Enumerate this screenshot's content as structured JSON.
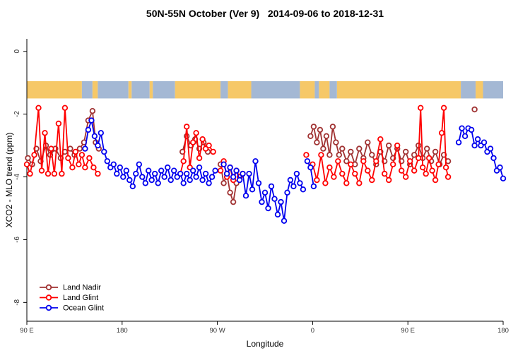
{
  "chart_data": {
    "type": "line",
    "title": "50N-55N October (Ver 9)   2014-09-06 to 2018-12-31",
    "xlabel": "Longitude",
    "ylabel": "XCO2 - MLO trend (ppm)",
    "xlim": [
      0,
      450
    ],
    "ylim": [
      -8.6,
      0.4
    ],
    "grid": false,
    "legend_position": "bottom-left",
    "x_ticks": [
      {
        "pos": 0,
        "label": "90 E"
      },
      {
        "pos": 90,
        "label": "180"
      },
      {
        "pos": 180,
        "label": "90 W"
      },
      {
        "pos": 270,
        "label": "0"
      },
      {
        "pos": 360,
        "label": "90 E"
      },
      {
        "pos": 450,
        "label": "180"
      }
    ],
    "y_ticks": [
      {
        "value": 0,
        "label": "0"
      },
      {
        "value": -2,
        "label": "-2"
      },
      {
        "value": -4,
        "label": "-4"
      },
      {
        "value": -6,
        "label": "-6"
      },
      {
        "value": -8,
        "label": "-8"
      }
    ],
    "map_strip": {
      "description": "land-ocean band along 50N-55N latitude",
      "y_top": -0.95,
      "y_bottom": -1.5,
      "land_color": "#F6C868",
      "ocean_color": "#A4B8D4",
      "segments": [
        [
          0,
          52,
          "land"
        ],
        [
          52,
          62,
          "ocean"
        ],
        [
          62,
          67,
          "land"
        ],
        [
          67,
          96,
          "ocean"
        ],
        [
          96,
          99,
          "land"
        ],
        [
          99,
          116,
          "ocean"
        ],
        [
          116,
          119,
          "land"
        ],
        [
          119,
          140,
          "ocean"
        ],
        [
          140,
          183,
          "land"
        ],
        [
          183,
          190,
          "ocean"
        ],
        [
          190,
          212,
          "land"
        ],
        [
          212,
          258,
          "ocean"
        ],
        [
          258,
          272,
          "land"
        ],
        [
          272,
          276,
          "ocean"
        ],
        [
          276,
          286,
          "land"
        ],
        [
          286,
          293,
          "ocean"
        ],
        [
          293,
          410,
          "land"
        ],
        [
          410,
          424,
          "ocean"
        ],
        [
          424,
          431,
          "land"
        ],
        [
          431,
          450,
          "ocean"
        ]
      ]
    },
    "series": [
      {
        "name": "Land Nadir",
        "color": "#A03232",
        "segments": [
          [
            [
              1,
              -3.4
            ],
            [
              5,
              -3.6
            ],
            [
              9,
              -3.1
            ],
            [
              13,
              -3.5
            ],
            [
              18,
              -3.0
            ],
            [
              22,
              -3.3
            ],
            [
              27,
              -3.1
            ],
            [
              32,
              -3.4
            ],
            [
              36,
              -3.2
            ],
            [
              41,
              -3.1
            ],
            [
              45,
              -3.3
            ],
            [
              50,
              -3.1
            ],
            [
              54,
              -2.9
            ],
            [
              58,
              -2.2
            ],
            [
              62,
              -1.9
            ],
            [
              65,
              -2.9
            ],
            [
              68,
              -3.1
            ]
          ],
          [
            [
              147,
              -3.2
            ],
            [
              151,
              -2.7
            ],
            [
              155,
              -3.0
            ],
            [
              159,
              -2.8
            ],
            [
              163,
              -3.1
            ],
            [
              167,
              -2.9
            ],
            [
              171,
              -3.2
            ]
          ],
          [
            [
              183,
              -3.6
            ],
            [
              186,
              -4.2
            ],
            [
              189,
              -3.9
            ],
            [
              192,
              -4.5
            ],
            [
              195,
              -4.8
            ],
            [
              198,
              -4.2
            ]
          ],
          [
            [
              268,
              -2.7
            ],
            [
              271,
              -2.4
            ],
            [
              274,
              -2.9
            ],
            [
              277,
              -2.5
            ],
            [
              280,
              -3.1
            ],
            [
              283,
              -2.7
            ],
            [
              286,
              -3.3
            ],
            [
              289,
              -2.4
            ],
            [
              292,
              -2.9
            ],
            [
              295,
              -3.3
            ],
            [
              298,
              -3.1
            ],
            [
              302,
              -3.5
            ],
            [
              306,
              -3.2
            ],
            [
              310,
              -3.6
            ],
            [
              314,
              -3.1
            ],
            [
              318,
              -3.4
            ],
            [
              322,
              -2.9
            ],
            [
              326,
              -3.3
            ],
            [
              330,
              -3.6
            ],
            [
              334,
              -3.2
            ],
            [
              338,
              -3.5
            ],
            [
              342,
              -3.0
            ],
            [
              346,
              -3.4
            ],
            [
              350,
              -3.1
            ],
            [
              354,
              -3.5
            ],
            [
              358,
              -3.2
            ],
            [
              362,
              -3.6
            ],
            [
              366,
              -3.3
            ],
            [
              370,
              -3.0
            ],
            [
              374,
              -3.4
            ],
            [
              378,
              -3.1
            ],
            [
              382,
              -3.5
            ],
            [
              386,
              -3.2
            ],
            [
              390,
              -3.6
            ],
            [
              394,
              -3.3
            ],
            [
              398,
              -3.5
            ]
          ],
          [
            [
              423,
              -1.85
            ]
          ]
        ]
      },
      {
        "name": "Land Glint",
        "color": "#FF0000",
        "segments": [
          [
            [
              0,
              -3.6
            ],
            [
              3,
              -3.9
            ],
            [
              7,
              -3.3
            ],
            [
              11,
              -1.8
            ],
            [
              14,
              -3.8
            ],
            [
              17,
              -2.6
            ],
            [
              20,
              -3.9
            ],
            [
              23,
              -3.1
            ],
            [
              26,
              -3.9
            ],
            [
              30,
              -2.3
            ],
            [
              33,
              -3.9
            ],
            [
              36,
              -1.8
            ],
            [
              39,
              -3.4
            ],
            [
              43,
              -3.7
            ],
            [
              46,
              -3.2
            ],
            [
              49,
              -3.6
            ],
            [
              52,
              -3.3
            ],
            [
              55,
              -3.7
            ],
            [
              59,
              -3.4
            ],
            [
              63,
              -3.7
            ],
            [
              67,
              -3.9
            ]
          ],
          [
            [
              145,
              -3.9
            ],
            [
              148,
              -3.5
            ],
            [
              151,
              -2.4
            ],
            [
              154,
              -3.7
            ],
            [
              157,
              -2.9
            ],
            [
              160,
              -2.6
            ],
            [
              163,
              -3.4
            ],
            [
              166,
              -2.8
            ],
            [
              169,
              -3.1
            ],
            [
              172,
              -3.0
            ],
            [
              176,
              -3.2
            ]
          ],
          [
            [
              183,
              -3.8
            ],
            [
              186,
              -3.5
            ],
            [
              189,
              -4.0
            ],
            [
              192,
              -3.7
            ],
            [
              195,
              -4.1
            ],
            [
              198,
              -3.8
            ],
            [
              201,
              -4.0
            ],
            [
              204,
              -3.9
            ]
          ],
          [
            [
              264,
              -3.3
            ]
          ],
          [
            [
              270,
              -3.6
            ],
            [
              274,
              -4.1
            ],
            [
              278,
              -3.3
            ],
            [
              282,
              -4.2
            ],
            [
              286,
              -3.7
            ],
            [
              290,
              -4.0
            ],
            [
              294,
              -3.5
            ],
            [
              298,
              -3.9
            ],
            [
              302,
              -4.2
            ],
            [
              306,
              -3.6
            ],
            [
              310,
              -3.9
            ],
            [
              314,
              -4.2
            ],
            [
              318,
              -3.5
            ],
            [
              322,
              -3.8
            ],
            [
              326,
              -4.1
            ],
            [
              330,
              -3.5
            ],
            [
              334,
              -2.8
            ],
            [
              338,
              -3.9
            ],
            [
              342,
              -4.1
            ],
            [
              346,
              -3.6
            ],
            [
              350,
              -3.0
            ],
            [
              354,
              -3.8
            ],
            [
              358,
              -4.0
            ],
            [
              362,
              -3.5
            ],
            [
              366,
              -3.8
            ],
            [
              370,
              -3.4
            ],
            [
              372,
              -1.8
            ],
            [
              374,
              -3.7
            ],
            [
              377,
              -3.9
            ],
            [
              380,
              -3.4
            ],
            [
              383,
              -3.8
            ],
            [
              386,
              -4.1
            ],
            [
              389,
              -3.6
            ],
            [
              392,
              -2.6
            ],
            [
              394,
              -1.8
            ],
            [
              396,
              -3.7
            ],
            [
              398,
              -4.0
            ]
          ]
        ]
      },
      {
        "name": "Ocean Glint",
        "color": "#0000EE",
        "segments": [
          [
            [
              55,
              -3.1
            ],
            [
              58,
              -2.5
            ],
            [
              61,
              -2.2
            ],
            [
              64,
              -2.7
            ],
            [
              67,
              -3.0
            ],
            [
              70,
              -2.6
            ],
            [
              73,
              -3.2
            ],
            [
              76,
              -3.5
            ],
            [
              79,
              -3.7
            ],
            [
              82,
              -3.6
            ],
            [
              85,
              -3.9
            ],
            [
              88,
              -3.7
            ],
            [
              91,
              -4.0
            ],
            [
              94,
              -3.8
            ],
            [
              97,
              -4.1
            ],
            [
              100,
              -4.3
            ],
            [
              103,
              -3.9
            ],
            [
              106,
              -3.6
            ],
            [
              109,
              -4.0
            ],
            [
              112,
              -4.2
            ],
            [
              115,
              -3.8
            ],
            [
              118,
              -4.1
            ],
            [
              121,
              -3.9
            ],
            [
              124,
              -4.2
            ],
            [
              127,
              -3.8
            ],
            [
              130,
              -4.0
            ],
            [
              133,
              -3.7
            ],
            [
              136,
              -4.1
            ],
            [
              139,
              -3.8
            ],
            [
              142,
              -4.0
            ],
            [
              145,
              -3.9
            ],
            [
              148,
              -4.2
            ],
            [
              151,
              -3.9
            ],
            [
              154,
              -4.1
            ],
            [
              157,
              -3.8
            ],
            [
              160,
              -4.0
            ],
            [
              163,
              -3.7
            ],
            [
              166,
              -4.1
            ],
            [
              169,
              -3.9
            ],
            [
              172,
              -4.2
            ],
            [
              175,
              -4.0
            ],
            [
              178,
              -3.8
            ]
          ],
          [
            [
              186,
              -3.6
            ],
            [
              189,
              -3.9
            ],
            [
              192,
              -3.7
            ],
            [
              195,
              -4.0
            ],
            [
              198,
              -3.8
            ],
            [
              201,
              -4.1
            ],
            [
              204,
              -3.9
            ],
            [
              207,
              -4.6
            ],
            [
              210,
              -3.9
            ],
            [
              213,
              -4.4
            ],
            [
              216,
              -3.5
            ],
            [
              219,
              -4.2
            ],
            [
              222,
              -4.8
            ],
            [
              225,
              -4.5
            ],
            [
              228,
              -5.0
            ],
            [
              231,
              -4.3
            ],
            [
              234,
              -4.7
            ],
            [
              237,
              -5.2
            ],
            [
              240,
              -4.8
            ],
            [
              243,
              -5.4
            ],
            [
              246,
              -4.5
            ],
            [
              249,
              -4.1
            ],
            [
              252,
              -4.3
            ],
            [
              255,
              -3.9
            ],
            [
              258,
              -4.2
            ],
            [
              261,
              -4.4
            ]
          ],
          [
            [
              265,
              -3.5
            ],
            [
              268,
              -3.7
            ],
            [
              271,
              -4.3
            ]
          ],
          [
            [
              408,
              -2.9
            ],
            [
              411,
              -2.45
            ],
            [
              414,
              -2.7
            ],
            [
              417,
              -2.45
            ],
            [
              420,
              -2.5
            ],
            [
              423,
              -3.0
            ],
            [
              426,
              -2.8
            ],
            [
              429,
              -3.0
            ],
            [
              432,
              -2.9
            ],
            [
              435,
              -3.2
            ],
            [
              438,
              -3.1
            ],
            [
              441,
              -3.4
            ],
            [
              444,
              -3.8
            ],
            [
              447,
              -3.7
            ],
            [
              450,
              -4.05
            ]
          ]
        ]
      }
    ]
  }
}
